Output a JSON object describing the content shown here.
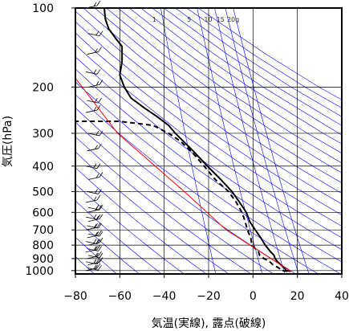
{
  "chart_data": {
    "type": "line",
    "title": "",
    "xlabel": "気温(実線), 露点(破線)",
    "ylabel": "気圧(hPa)",
    "xlim": [
      -80,
      40
    ],
    "ylim": [
      1030,
      100
    ],
    "y_scale": "log",
    "grid": true,
    "x_ticks": [
      -80,
      -60,
      -40,
      -20,
      0,
      20,
      40
    ],
    "x_tick_labels": [
      "−80",
      "−60",
      "−40",
      "−20",
      "0",
      "20",
      "40"
    ],
    "y_ticks": [
      100,
      200,
      300,
      400,
      500,
      600,
      700,
      800,
      900,
      1000
    ],
    "y_tick_labels": [
      "100",
      "200",
      "300",
      "400",
      "500",
      "600",
      "700",
      "800",
      "900",
      "1000"
    ],
    "mixing_ratio_labels": [
      "1",
      "5",
      "10",
      "15",
      "20g"
    ],
    "mixing_ratio_values": [
      1,
      5,
      10,
      15,
      20
    ],
    "colors": {
      "temperature": "#000000",
      "dewpoint": "#000000",
      "parcel": "#ff0000",
      "dry_adiabat": "#0000ff",
      "grid": "#000000",
      "wind_barb": "#000000"
    },
    "series": [
      {
        "style": "solid",
        "points": [
          [
            1006,
            17
          ],
          [
            1000,
            15
          ],
          [
            975,
            14
          ],
          [
            950,
            12.5
          ],
          [
            925,
            11
          ],
          [
            900,
            10
          ],
          [
            875,
            9.5
          ],
          [
            850,
            8
          ],
          [
            800,
            5.5
          ],
          [
            750,
            3.5
          ],
          [
            700,
            1
          ],
          [
            650,
            -1.5
          ],
          [
            600,
            -3
          ],
          [
            550,
            -6
          ],
          [
            500,
            -9.5
          ],
          [
            450,
            -14.5
          ],
          [
            400,
            -20.5
          ],
          [
            350,
            -27
          ],
          [
            300,
            -35
          ],
          [
            280,
            -38
          ],
          [
            260,
            -43
          ],
          [
            240,
            -49
          ],
          [
            220,
            -55
          ],
          [
            200,
            -58
          ],
          [
            180,
            -60
          ],
          [
            160,
            -59
          ],
          [
            140,
            -59
          ],
          [
            130,
            -62
          ],
          [
            120,
            -65
          ],
          [
            110,
            -66.5
          ],
          [
            100,
            -67
          ]
        ]
      },
      {
        "style": "dashed",
        "points": [
          [
            1006,
            15.5
          ],
          [
            1000,
            13
          ],
          [
            975,
            11.5
          ],
          [
            950,
            9
          ],
          [
            925,
            7.5
          ],
          [
            900,
            5
          ],
          [
            875,
            3
          ],
          [
            850,
            2.5
          ],
          [
            800,
            -0.5
          ],
          [
            750,
            -1
          ],
          [
            700,
            -2.5
          ],
          [
            650,
            -3.5
          ],
          [
            600,
            -5
          ],
          [
            550,
            -7.5
          ],
          [
            500,
            -11
          ],
          [
            450,
            -17
          ],
          [
            400,
            -22
          ],
          [
            350,
            -28
          ],
          [
            320,
            -33
          ],
          [
            300,
            -38
          ],
          [
            280,
            -45
          ],
          [
            270,
            -60
          ],
          [
            270,
            -80
          ]
        ]
      },
      {
        "style": "solid-red",
        "points": [
          [
            1006,
            17
          ],
          [
            700,
            -12
          ],
          [
            500,
            -31
          ],
          [
            300,
            -61
          ],
          [
            185,
            -80
          ]
        ]
      }
    ],
    "wind_barbs_hPa": [
      1000,
      975,
      950,
      925,
      900,
      875,
      850,
      825,
      800,
      775,
      750,
      725,
      700,
      675,
      650,
      625,
      600,
      575,
      550,
      500,
      450,
      400,
      350,
      300,
      250,
      225,
      200,
      175,
      150,
      125,
      100
    ]
  }
}
